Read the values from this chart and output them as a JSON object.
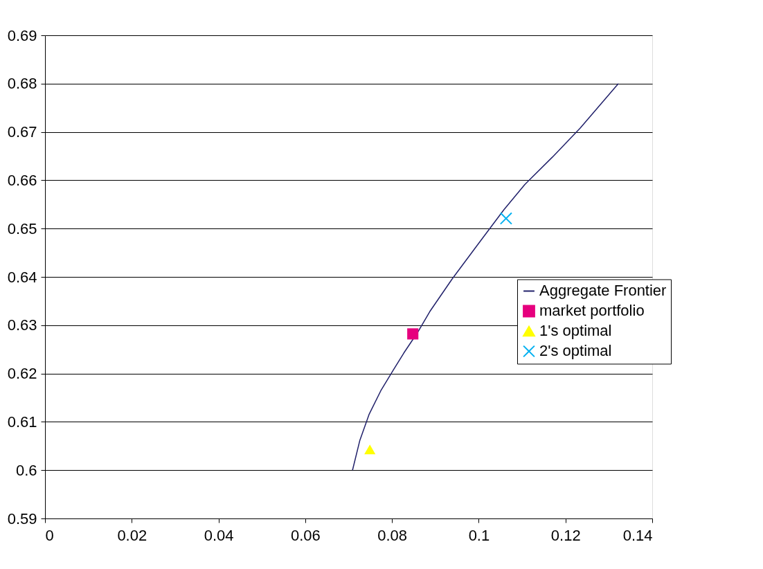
{
  "chart_data": {
    "type": "line",
    "xlim": [
      0,
      0.14
    ],
    "ylim": [
      0.59,
      0.69
    ],
    "xticks": [
      0,
      0.02,
      0.04,
      0.06,
      0.08,
      0.1,
      0.12,
      0.14
    ],
    "yticks": [
      0.59,
      0.6,
      0.61,
      0.62,
      0.63,
      0.64,
      0.65,
      0.66,
      0.67,
      0.68,
      0.69
    ],
    "grid": "y",
    "legend": "right",
    "series": [
      {
        "name": "Aggregate Frontier",
        "marker": "none",
        "color": "#20206a",
        "x": [
          0.0709,
          0.0726,
          0.0747,
          0.0774,
          0.0803,
          0.0827,
          0.0859,
          0.0887,
          0.0939,
          0.1002,
          0.1058,
          0.1106,
          0.117,
          0.1234,
          0.1322
        ],
        "values": [
          0.6,
          0.6062,
          0.6115,
          0.6164,
          0.6207,
          0.6242,
          0.6285,
          0.6328,
          0.6396,
          0.6472,
          0.6539,
          0.6591,
          0.6648,
          0.6708,
          0.68
        ]
      },
      {
        "name": "market portfolio",
        "type": "scatter",
        "marker": "square",
        "color": "#e6007e",
        "x": [
          0.0848
        ],
        "values": [
          0.6282
        ]
      },
      {
        "name": "1's optimal",
        "type": "scatter",
        "marker": "triangle",
        "color": "#ffff00",
        "x": [
          0.0749
        ],
        "values": [
          0.6043
        ]
      },
      {
        "name": "2's optimal",
        "type": "scatter",
        "marker": "cross",
        "color": "#00b0f0",
        "x": [
          0.1063
        ],
        "values": [
          0.6521
        ]
      }
    ]
  }
}
